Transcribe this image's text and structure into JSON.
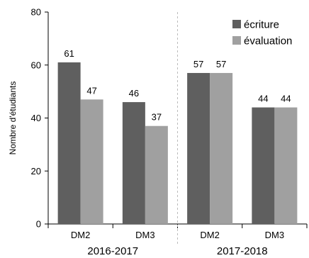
{
  "chart_data": {
    "type": "bar",
    "title": "",
    "xlabel": "",
    "ylabel": "Nombre d'étudiants",
    "ylim": [
      0,
      80
    ],
    "yticks": [
      0,
      20,
      40,
      60,
      80
    ],
    "categories": [
      "DM2",
      "DM3",
      "DM2",
      "DM3"
    ],
    "groups": [
      {
        "label": "2016-2017",
        "categories": [
          "DM2",
          "DM3"
        ]
      },
      {
        "label": "2017-2018",
        "categories": [
          "DM2",
          "DM3"
        ]
      }
    ],
    "series": [
      {
        "name": "écriture",
        "color": "#5f5f5f",
        "values": [
          61,
          46,
          57,
          44
        ]
      },
      {
        "name": "évaluation",
        "color": "#a0a0a0",
        "values": [
          47,
          37,
          57,
          44
        ]
      }
    ],
    "legend_position": "top-right",
    "grid": false
  }
}
